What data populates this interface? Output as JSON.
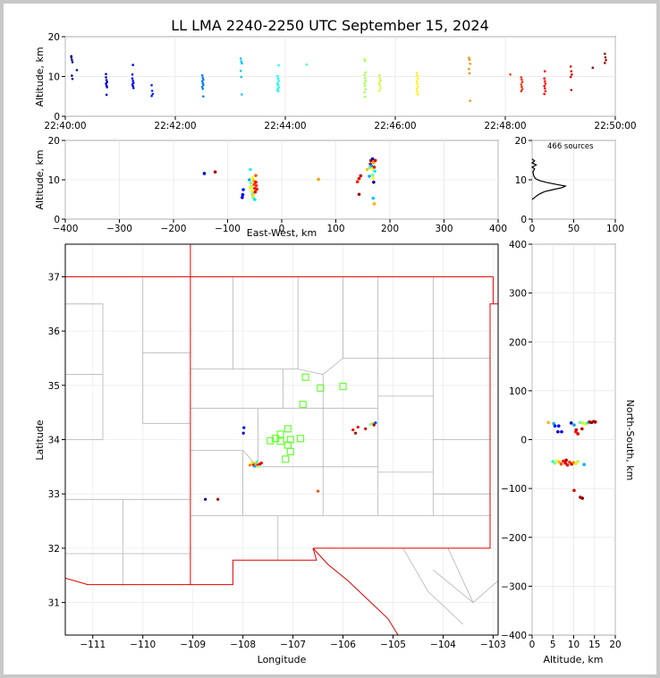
{
  "title": "LL LMA 2240-2250 UTC September 15, 2024",
  "chart_data": [
    {
      "id": "time_height",
      "type": "scatter",
      "ylabel": "Altitude, km",
      "xlim_minutes": [
        0,
        10
      ],
      "x_ticks": [
        "22:40:00",
        "22:42:00",
        "22:44:00",
        "22:46:00",
        "22:48:00",
        "22:50:00"
      ],
      "ylim": [
        0,
        20
      ],
      "y_ticks": [
        0,
        10,
        20
      ],
      "clusters": [
        {
          "t": 0.12,
          "altitudes": [
            14.8,
            14.2,
            13.6,
            15.1,
            10.2,
            9.4
          ]
        },
        {
          "t": 0.22,
          "altitudes": [
            11.6
          ]
        },
        {
          "t": 0.75,
          "altitudes": [
            9.8,
            9.1,
            8.6,
            8.2,
            7.7,
            7.3,
            10.6,
            5.4
          ]
        },
        {
          "t": 1.23,
          "altitudes": [
            9.5,
            8.9,
            8.4,
            8.0,
            7.6,
            7.1,
            10.5,
            12.9
          ]
        },
        {
          "t": 1.58,
          "altitudes": [
            7.8,
            6.4,
            5.6,
            5.1
          ]
        },
        {
          "t": 2.5,
          "altitudes": [
            10.3,
            9.7,
            9.2,
            8.8,
            8.3,
            7.9,
            7.4,
            6.9,
            5.0
          ]
        },
        {
          "t": 3.2,
          "altitudes": [
            14.5,
            13.8,
            13.3,
            11.4,
            9.9,
            5.5
          ]
        },
        {
          "t": 3.87,
          "altitudes": [
            10.1,
            9.5,
            8.9,
            8.3,
            7.8,
            7.2,
            6.7,
            6.3,
            12.8
          ]
        },
        {
          "t": 4.4,
          "altitudes": [
            13.0
          ]
        },
        {
          "t": 5.45,
          "altitudes": [
            14.3,
            13.9,
            11.0,
            10.4,
            9.6,
            8.9,
            8.3,
            7.6,
            6.8,
            6.0,
            4.9
          ]
        },
        {
          "t": 5.72,
          "altitudes": [
            10.3,
            9.6,
            9.0,
            8.4,
            7.8,
            7.1,
            6.4
          ]
        },
        {
          "t": 6.4,
          "altitudes": [
            10.9,
            10.2,
            9.5,
            8.8,
            8.2,
            7.5,
            6.9,
            6.2,
            5.5
          ]
        },
        {
          "t": 7.35,
          "altitudes": [
            14.7,
            14.2,
            13.2,
            11.9,
            10.8,
            3.9
          ]
        },
        {
          "t": 8.1,
          "altitudes": [
            10.5
          ]
        },
        {
          "t": 8.3,
          "altitudes": [
            9.8,
            9.2,
            8.6,
            8.0,
            7.4,
            6.8,
            6.3
          ]
        },
        {
          "t": 8.72,
          "altitudes": [
            9.5,
            8.8,
            8.2,
            7.6,
            7.0,
            6.3,
            5.6,
            11.3
          ]
        },
        {
          "t": 9.2,
          "altitudes": [
            12.5,
            11.3,
            10.5,
            9.9,
            6.6
          ]
        },
        {
          "t": 9.6,
          "altitudes": [
            12.2
          ]
        },
        {
          "t": 9.82,
          "altitudes": [
            15.7,
            14.8,
            14.1,
            13.4
          ]
        }
      ]
    },
    {
      "id": "ew_altitude",
      "type": "scatter",
      "xlabel": "East-West, km",
      "ylabel": "Altitude, km",
      "xlim": [
        -400,
        400
      ],
      "x_ticks": [
        -400,
        -300,
        -200,
        -100,
        0,
        100,
        200,
        300,
        400
      ],
      "ylim": [
        0,
        20
      ],
      "y_ticks": [
        0,
        10,
        20
      ],
      "points": [
        [
          -143,
          11.6,
          0.08
        ],
        [
          -123,
          12.0,
          0.95
        ],
        [
          -73,
          5.5,
          0.12
        ],
        [
          -72,
          6.2,
          0.1
        ],
        [
          -71,
          7.5,
          0.15
        ],
        [
          -60,
          10.0,
          0.3
        ],
        [
          -58,
          12.6,
          0.4
        ],
        [
          -57,
          9.2,
          0.5
        ],
        [
          -56,
          8.3,
          0.55
        ],
        [
          -55,
          7.2,
          0.6
        ],
        [
          -54,
          6.4,
          0.45
        ],
        [
          -53,
          5.5,
          0.5
        ],
        [
          -52,
          9.8,
          0.7
        ],
        [
          -51,
          8.8,
          0.8
        ],
        [
          -50,
          7.8,
          0.85
        ],
        [
          -49,
          6.9,
          0.9
        ],
        [
          -48,
          9.4,
          0.88
        ],
        [
          -47,
          8.5,
          0.82
        ],
        [
          -46,
          7.6,
          0.86
        ],
        [
          -48,
          11.1,
          0.78
        ],
        [
          -54,
          10.5,
          0.62
        ],
        [
          -58,
          8.0,
          0.58
        ],
        [
          -53,
          6.0,
          0.66
        ],
        [
          -50,
          5.0,
          0.35
        ],
        [
          68,
          10.1,
          0.72
        ],
        [
          140,
          9.5,
          0.84
        ],
        [
          143,
          10.3,
          0.9
        ],
        [
          146,
          11.0,
          0.92
        ],
        [
          143,
          6.3,
          0.96
        ],
        [
          158,
          12.6,
          0.68
        ],
        [
          162,
          10.9,
          0.3
        ],
        [
          163,
          13.1,
          0.45
        ],
        [
          164,
          14.0,
          0.95
        ],
        [
          165,
          14.9,
          0.98
        ],
        [
          166,
          13.6,
          0.28
        ],
        [
          167,
          12.8,
          0.6
        ],
        [
          168,
          15.3,
          0.06
        ],
        [
          168,
          11.2,
          0.5
        ],
        [
          169,
          10.4,
          0.62
        ],
        [
          170,
          14.4,
          0.72
        ],
        [
          171,
          13.2,
          0.88
        ],
        [
          170,
          9.4,
          0.04
        ],
        [
          172,
          12.2,
          0.36
        ],
        [
          173,
          14.9,
          0.9
        ],
        [
          171,
          3.9,
          0.7
        ],
        [
          169,
          5.3,
          0.32
        ]
      ]
    },
    {
      "id": "histogram",
      "type": "line",
      "annotation": "466 sources",
      "xlim": [
        0,
        100
      ],
      "x_ticks": [
        0,
        50,
        100
      ],
      "ylim": [
        0,
        20
      ],
      "y_ticks": [
        0,
        10,
        20
      ],
      "profile": [
        [
          0,
          5.0
        ],
        [
          3,
          5.5
        ],
        [
          6,
          6.0
        ],
        [
          9,
          6.4
        ],
        [
          15,
          7.0
        ],
        [
          25,
          7.5
        ],
        [
          36,
          8.0
        ],
        [
          40,
          8.4
        ],
        [
          30,
          8.8
        ],
        [
          18,
          9.3
        ],
        [
          9,
          9.8
        ],
        [
          4,
          10.3
        ],
        [
          2,
          11.0
        ],
        [
          1,
          12.0
        ],
        [
          3,
          12.8
        ],
        [
          0,
          13.2
        ],
        [
          5,
          13.8
        ],
        [
          0,
          14.3
        ],
        [
          3,
          14.8
        ],
        [
          0,
          15.3
        ]
      ]
    },
    {
      "id": "plan_view",
      "type": "scatter",
      "xlabel": "Longitude",
      "ylabel": "Latitude",
      "xlim": [
        -111.55,
        -102.9
      ],
      "ylim": [
        30.4,
        37.6
      ],
      "x_ticks": [
        -111,
        -110,
        -109,
        -108,
        -107,
        -106,
        -105,
        -104,
        -103
      ],
      "y_ticks": [
        31,
        32,
        33,
        34,
        35,
        36,
        37
      ],
      "stations": [
        [
          -106.75,
          35.15
        ],
        [
          -106.45,
          34.95
        ],
        [
          -106.0,
          34.98
        ],
        [
          -106.8,
          34.65
        ],
        [
          -107.1,
          34.2
        ],
        [
          -107.25,
          34.1
        ],
        [
          -107.35,
          34.02
        ],
        [
          -107.45,
          33.98
        ],
        [
          -107.25,
          33.97
        ],
        [
          -107.05,
          34.0
        ],
        [
          -106.85,
          34.02
        ],
        [
          -107.1,
          33.9
        ],
        [
          -107.05,
          33.78
        ],
        [
          -107.15,
          33.64
        ]
      ],
      "sources": [
        [
          -108.75,
          32.9,
          0.05
        ],
        [
          -108.5,
          32.9,
          0.95
        ],
        [
          -107.98,
          34.22,
          0.12
        ],
        [
          -107.99,
          34.12,
          0.1
        ],
        [
          -107.8,
          33.55,
          0.8
        ],
        [
          -107.78,
          33.52,
          0.9
        ],
        [
          -107.74,
          33.56,
          0.7
        ],
        [
          -107.7,
          33.53,
          0.85
        ],
        [
          -107.66,
          33.55,
          0.92
        ],
        [
          -107.82,
          33.58,
          0.6
        ],
        [
          -107.72,
          33.59,
          0.45
        ],
        [
          -107.63,
          33.57,
          0.88
        ],
        [
          -107.76,
          33.51,
          0.3
        ],
        [
          -107.69,
          33.5,
          0.55
        ],
        [
          -107.86,
          33.53,
          0.75
        ],
        [
          -106.5,
          33.05,
          0.8
        ],
        [
          -105.8,
          34.18,
          0.9
        ],
        [
          -105.75,
          34.12,
          0.95
        ],
        [
          -105.7,
          34.23,
          0.88
        ],
        [
          -105.55,
          34.2,
          0.92
        ],
        [
          -105.45,
          34.28,
          0.5
        ],
        [
          -105.4,
          34.3,
          0.7
        ],
        [
          -105.38,
          34.27,
          0.97
        ],
        [
          -105.35,
          34.31,
          0.2
        ]
      ]
    },
    {
      "id": "altitude_ns",
      "type": "scatter",
      "xlabel": "Altitude, km",
      "ylabel": "North-South, km",
      "xlim": [
        0,
        20
      ],
      "x_ticks": [
        0,
        5,
        10,
        15,
        20
      ],
      "ylim": [
        -400,
        400
      ],
      "y_ticks": [
        -400,
        -300,
        -200,
        -100,
        0,
        100,
        200,
        300,
        400
      ],
      "points": [
        [
          3.9,
          35,
          0.7
        ],
        [
          5.2,
          33,
          0.3
        ],
        [
          5.5,
          28,
          0.15
        ],
        [
          6.2,
          16,
          0.08
        ],
        [
          7.1,
          16,
          0.1
        ],
        [
          6.4,
          28,
          0.12
        ],
        [
          9.4,
          34,
          0.06
        ],
        [
          10.1,
          30,
          0.28
        ],
        [
          10.5,
          16,
          0.85
        ],
        [
          11.0,
          12,
          0.9
        ],
        [
          10.6,
          20,
          0.92
        ],
        [
          11.5,
          35,
          0.5
        ],
        [
          12.0,
          22,
          0.94
        ],
        [
          12.2,
          34,
          0.55
        ],
        [
          12.8,
          32,
          0.62
        ],
        [
          13.3,
          34,
          0.4
        ],
        [
          13.8,
          36,
          0.95
        ],
        [
          14.3,
          35,
          0.98
        ],
        [
          14.8,
          37,
          0.98
        ],
        [
          15.2,
          36,
          0.96
        ],
        [
          5.0,
          -45,
          0.4
        ],
        [
          5.5,
          -48,
          0.5
        ],
        [
          6.0,
          -43,
          0.6
        ],
        [
          6.5,
          -46,
          0.7
        ],
        [
          7.0,
          -50,
          0.8
        ],
        [
          7.5,
          -44,
          0.85
        ],
        [
          8.0,
          -48,
          0.9
        ],
        [
          8.5,
          -52,
          0.88
        ],
        [
          9.0,
          -46,
          0.82
        ],
        [
          9.5,
          -50,
          0.92
        ],
        [
          10.0,
          -47,
          0.75
        ],
        [
          10.5,
          -49,
          0.65
        ],
        [
          11.0,
          -45,
          0.55
        ],
        [
          12.5,
          -51,
          0.3
        ],
        [
          8.2,
          -42,
          0.95
        ],
        [
          10.1,
          -104,
          0.9
        ],
        [
          11.6,
          -118,
          0.95
        ],
        [
          12.1,
          -120,
          0.99
        ]
      ]
    }
  ]
}
